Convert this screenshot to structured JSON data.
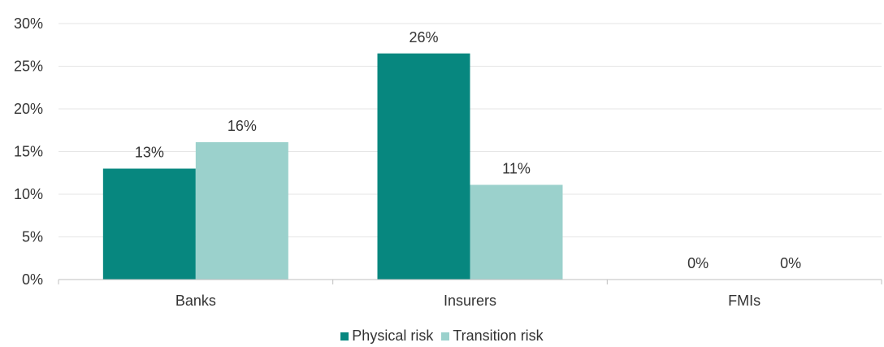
{
  "chart_data": {
    "type": "bar",
    "categories": [
      "Banks",
      "Insurers",
      "FMIs"
    ],
    "series": [
      {
        "name": "Physical risk",
        "values": [
          13,
          26.5,
          0
        ],
        "labels": [
          "13%",
          "26%",
          "0%"
        ],
        "color": "#07877F"
      },
      {
        "name": "Transition risk",
        "values": [
          16.1,
          11.1,
          0
        ],
        "labels": [
          "16%",
          "11%",
          "0%"
        ],
        "color": "#9BD1CC"
      }
    ],
    "ylim": [
      0,
      30
    ],
    "yticks": [
      0,
      5,
      10,
      15,
      20,
      25,
      30
    ],
    "ytick_labels": [
      "0%",
      "5%",
      "10%",
      "15%",
      "20%",
      "25%",
      "30%"
    ],
    "grid": true,
    "legend_position": "bottom-center",
    "title": "",
    "xlabel": "",
    "ylabel": ""
  }
}
